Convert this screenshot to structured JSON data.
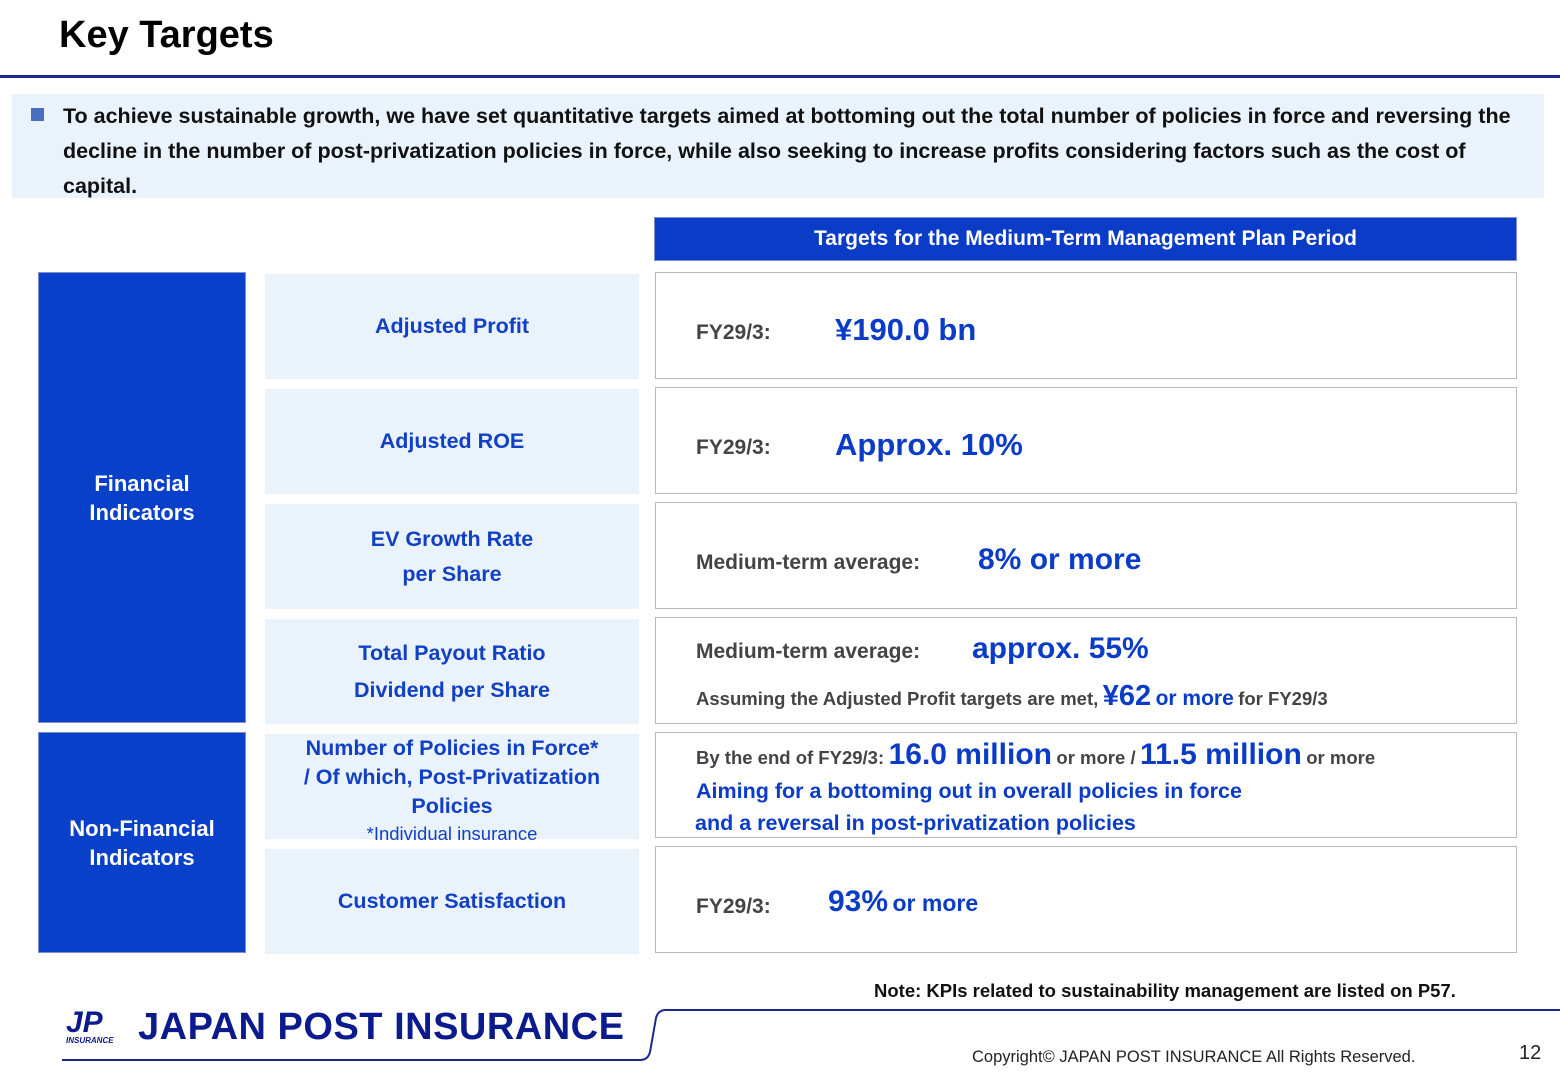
{
  "title": "Key Targets",
  "summary": "To achieve sustainable growth, we have set quantitative targets aimed at bottoming out the total number of policies in force and reversing the decline in the number of post-privatization policies in force, while also seeking to increase profits considering factors such as the cost of capital.",
  "column_header": "Targets for the Medium-Term Management Plan Period",
  "groups": {
    "financial": "Financial\nIndicators",
    "nonfinancial": "Non-Financial\nIndicators"
  },
  "rows": {
    "adjusted_profit": {
      "label": "Adjusted Profit",
      "prefix": "FY29/3:",
      "value": "¥190.0 bn"
    },
    "adjusted_roe": {
      "label": "Adjusted ROE",
      "prefix": "FY29/3:",
      "value": "Approx. 10%"
    },
    "ev_growth": {
      "label_line1": "EV Growth Rate",
      "label_line2": "per Share",
      "prefix": "Medium-term average:",
      "value": "8% or more"
    },
    "payout": {
      "label_line1": "Total Payout Ratio",
      "label_line2": "Dividend per Share",
      "line1_prefix": "Medium-term average:",
      "line1_value": "approx. 55%",
      "line2_prefix": "Assuming the Adjusted Profit targets are met,",
      "line2_value": "¥62",
      "line2_mid": "or more",
      "line2_suffix": "for FY29/3"
    },
    "policies": {
      "label_line1": "Number of Policies in Force*",
      "label_line2": "/ Of which, Post-Privatization",
      "label_line3": "Policies",
      "label_note": "*Individual insurance",
      "prefix": "By the end of FY29/3:",
      "value1": "16.0 million",
      "mid": "or more /",
      "value2": "11.5 million",
      "suffix": "or more",
      "aim_line1": "Aiming for a bottoming out in overall policies in force",
      "aim_line2": "and a reversal in post-privatization policies"
    },
    "satisfaction": {
      "label": "Customer Satisfaction",
      "prefix": "FY29/3:",
      "value": "93%",
      "suffix": "or more"
    }
  },
  "note": "Note: KPIs related to sustainability management are listed on P57.",
  "footer": {
    "logo_mark": "JP",
    "logo_sub": "INSURANCE",
    "logo_text": "JAPAN POST INSURANCE",
    "copyright": "Copyright© JAPAN POST INSURANCE All Rights Reserved.",
    "page": "12"
  },
  "colors": {
    "accent": "#0b3cc8",
    "group_fill": "#0840c9",
    "label_fill": "#eaf3fc",
    "rule": "#1a2a8c"
  }
}
